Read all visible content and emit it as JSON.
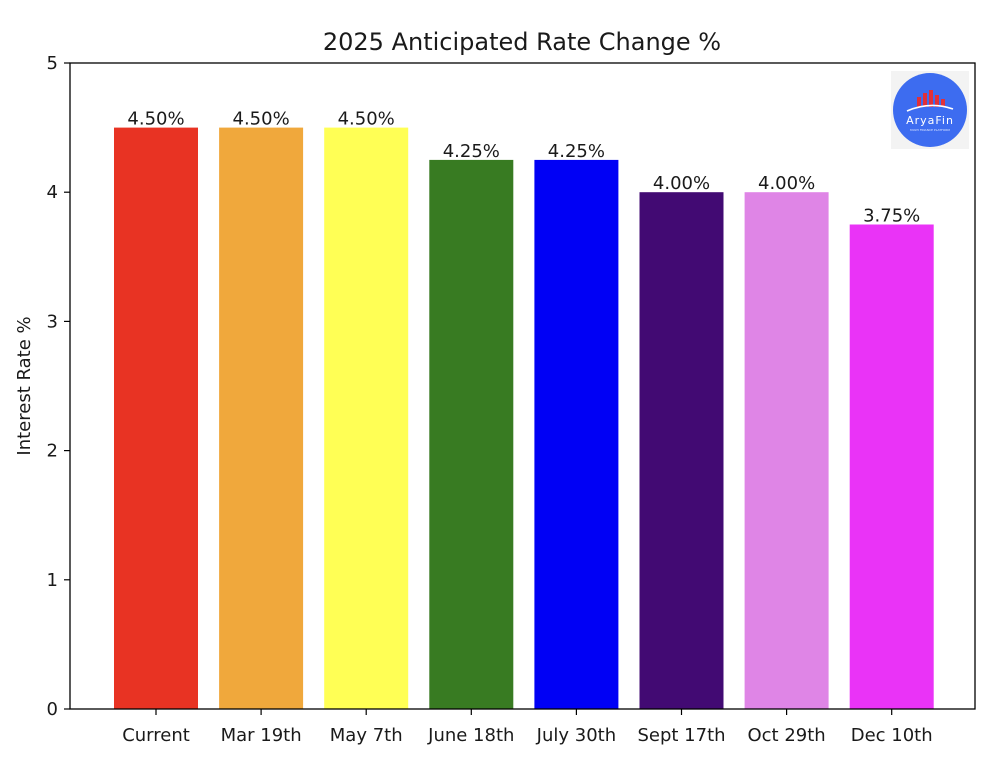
{
  "chart_data": {
    "type": "bar",
    "title": "2025 Anticipated Rate Change %",
    "xlabel": "",
    "ylabel": "Interest Rate %",
    "categories": [
      "Current",
      "Mar 19th",
      "May 7th",
      "June 18th",
      "July 30th",
      "Sept 17th",
      "Oct 29th",
      "Dec 10th"
    ],
    "values": [
      4.5,
      4.5,
      4.5,
      4.25,
      4.25,
      4.0,
      4.0,
      3.75
    ],
    "data_labels": [
      "4.50%",
      "4.50%",
      "4.50%",
      "4.25%",
      "4.25%",
      "4.00%",
      "4.00%",
      "3.75%"
    ],
    "colors": [
      "#e83323",
      "#f0a83c",
      "#ffff55",
      "#387b22",
      "#0000f5",
      "#420a73",
      "#df85e6",
      "#ea33f7"
    ],
    "ylim": [
      0,
      5
    ],
    "yticks": [
      0,
      1,
      2,
      3,
      4,
      5
    ],
    "grid": false,
    "legend": "none"
  },
  "logo": {
    "text": "AryaFin",
    "tagline": "MULTI FINANCE PLATFORM",
    "circle_color": "#3d6cf0",
    "bar_color": "#e0303a"
  }
}
